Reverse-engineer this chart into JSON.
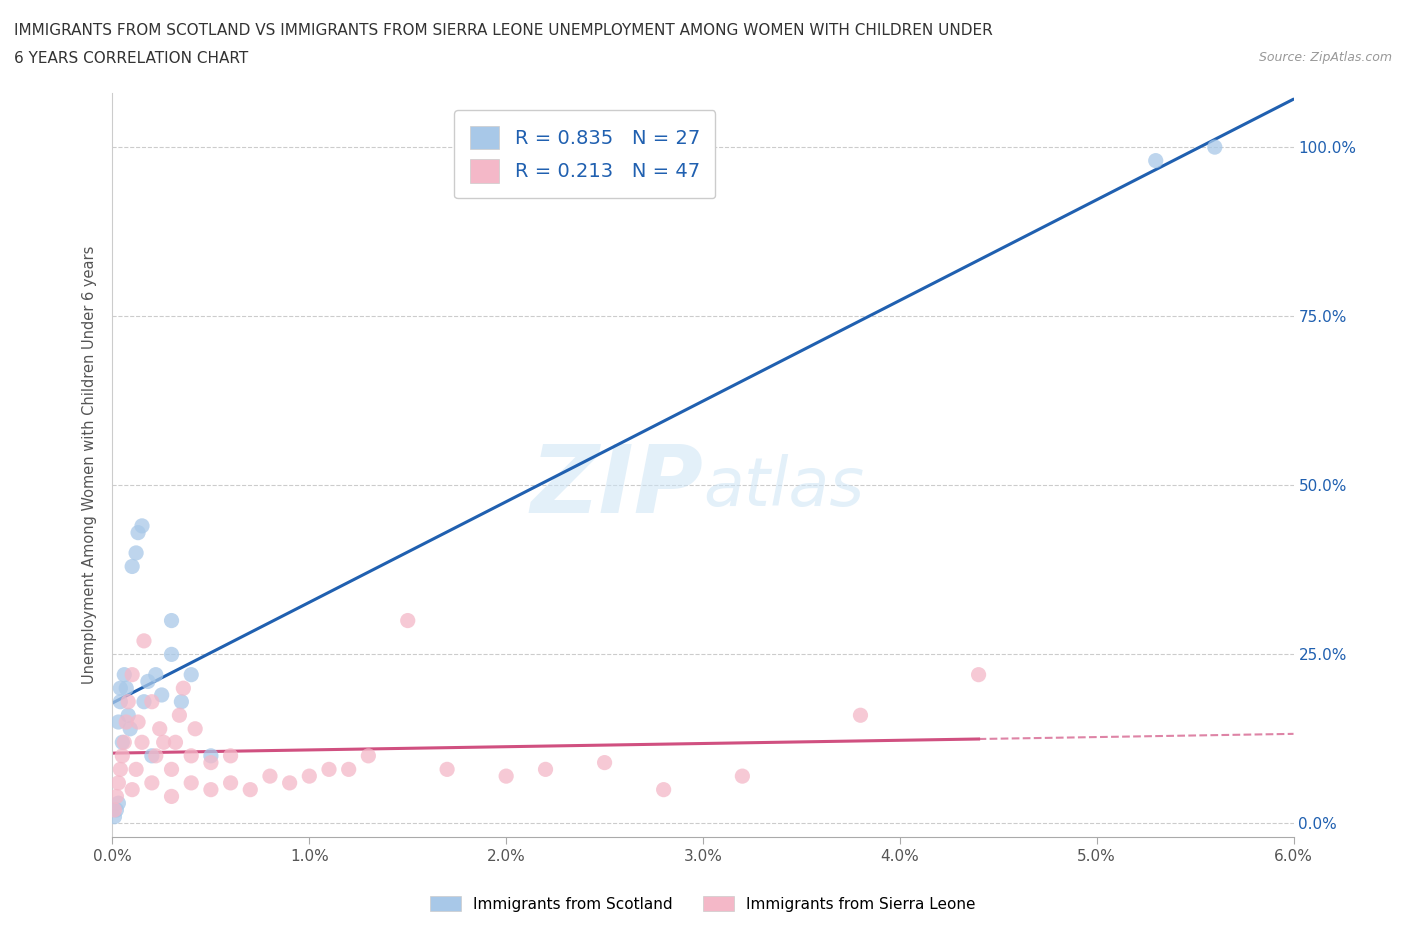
{
  "title_line1": "IMMIGRANTS FROM SCOTLAND VS IMMIGRANTS FROM SIERRA LEONE UNEMPLOYMENT AMONG WOMEN WITH CHILDREN UNDER",
  "title_line2": "6 YEARS CORRELATION CHART",
  "source": "Source: ZipAtlas.com",
  "ylabel": "Unemployment Among Women with Children Under 6 years",
  "watermark": "ZIPatlas",
  "scotland_color": "#a8c8e8",
  "sierra_leone_color": "#f4b8c8",
  "scotland_line_color": "#2060b0",
  "sierra_leone_line_color": "#d05080",
  "xlim": [
    0.0,
    0.06
  ],
  "ylim": [
    -0.02,
    1.08
  ],
  "x_ticks": [
    0.0,
    0.01,
    0.02,
    0.03,
    0.04,
    0.05,
    0.06
  ],
  "x_tick_labels": [
    "0.0%",
    "1.0%",
    "2.0%",
    "3.0%",
    "4.0%",
    "5.0%",
    "6.0%"
  ],
  "y_ticks": [
    0.0,
    0.25,
    0.5,
    0.75,
    1.0
  ],
  "y_tick_labels": [
    "0.0%",
    "25.0%",
    "50.0%",
    "75.0%",
    "100.0%"
  ],
  "right_tick_color": "#2060b0",
  "background_color": "#ffffff",
  "grid_color": "#cccccc",
  "scotland_points_x": [
    0.0001,
    0.0002,
    0.0003,
    0.0003,
    0.0004,
    0.0004,
    0.0005,
    0.0006,
    0.0007,
    0.0008,
    0.0009,
    0.001,
    0.0012,
    0.0013,
    0.0015,
    0.0016,
    0.0018,
    0.002,
    0.0022,
    0.0025,
    0.003,
    0.003,
    0.0035,
    0.004,
    0.005,
    0.053,
    0.056
  ],
  "scotland_points_y": [
    0.01,
    0.02,
    0.03,
    0.15,
    0.18,
    0.2,
    0.12,
    0.22,
    0.2,
    0.16,
    0.14,
    0.38,
    0.4,
    0.43,
    0.44,
    0.18,
    0.21,
    0.1,
    0.22,
    0.19,
    0.25,
    0.3,
    0.18,
    0.22,
    0.1,
    0.98,
    1.0
  ],
  "sierra_leone_points_x": [
    0.0001,
    0.0002,
    0.0003,
    0.0004,
    0.0005,
    0.0006,
    0.0007,
    0.0008,
    0.001,
    0.001,
    0.0012,
    0.0013,
    0.0015,
    0.0016,
    0.002,
    0.002,
    0.0022,
    0.0024,
    0.0026,
    0.003,
    0.003,
    0.0032,
    0.0034,
    0.0036,
    0.004,
    0.004,
    0.0042,
    0.005,
    0.005,
    0.006,
    0.006,
    0.007,
    0.008,
    0.009,
    0.01,
    0.011,
    0.012,
    0.013,
    0.015,
    0.017,
    0.02,
    0.022,
    0.025,
    0.028,
    0.032,
    0.038,
    0.044
  ],
  "sierra_leone_points_y": [
    0.02,
    0.04,
    0.06,
    0.08,
    0.1,
    0.12,
    0.15,
    0.18,
    0.05,
    0.22,
    0.08,
    0.15,
    0.12,
    0.27,
    0.06,
    0.18,
    0.1,
    0.14,
    0.12,
    0.04,
    0.08,
    0.12,
    0.16,
    0.2,
    0.06,
    0.1,
    0.14,
    0.05,
    0.09,
    0.06,
    0.1,
    0.05,
    0.07,
    0.06,
    0.07,
    0.08,
    0.08,
    0.1,
    0.3,
    0.08,
    0.07,
    0.08,
    0.09,
    0.05,
    0.07,
    0.16,
    0.22
  ],
  "legend_label_scotland": "R = 0.835   N = 27",
  "legend_label_sierra": "R = 0.213   N = 47",
  "bottom_legend_scotland": "Immigrants from Scotland",
  "bottom_legend_sierra": "Immigrants from Sierra Leone"
}
